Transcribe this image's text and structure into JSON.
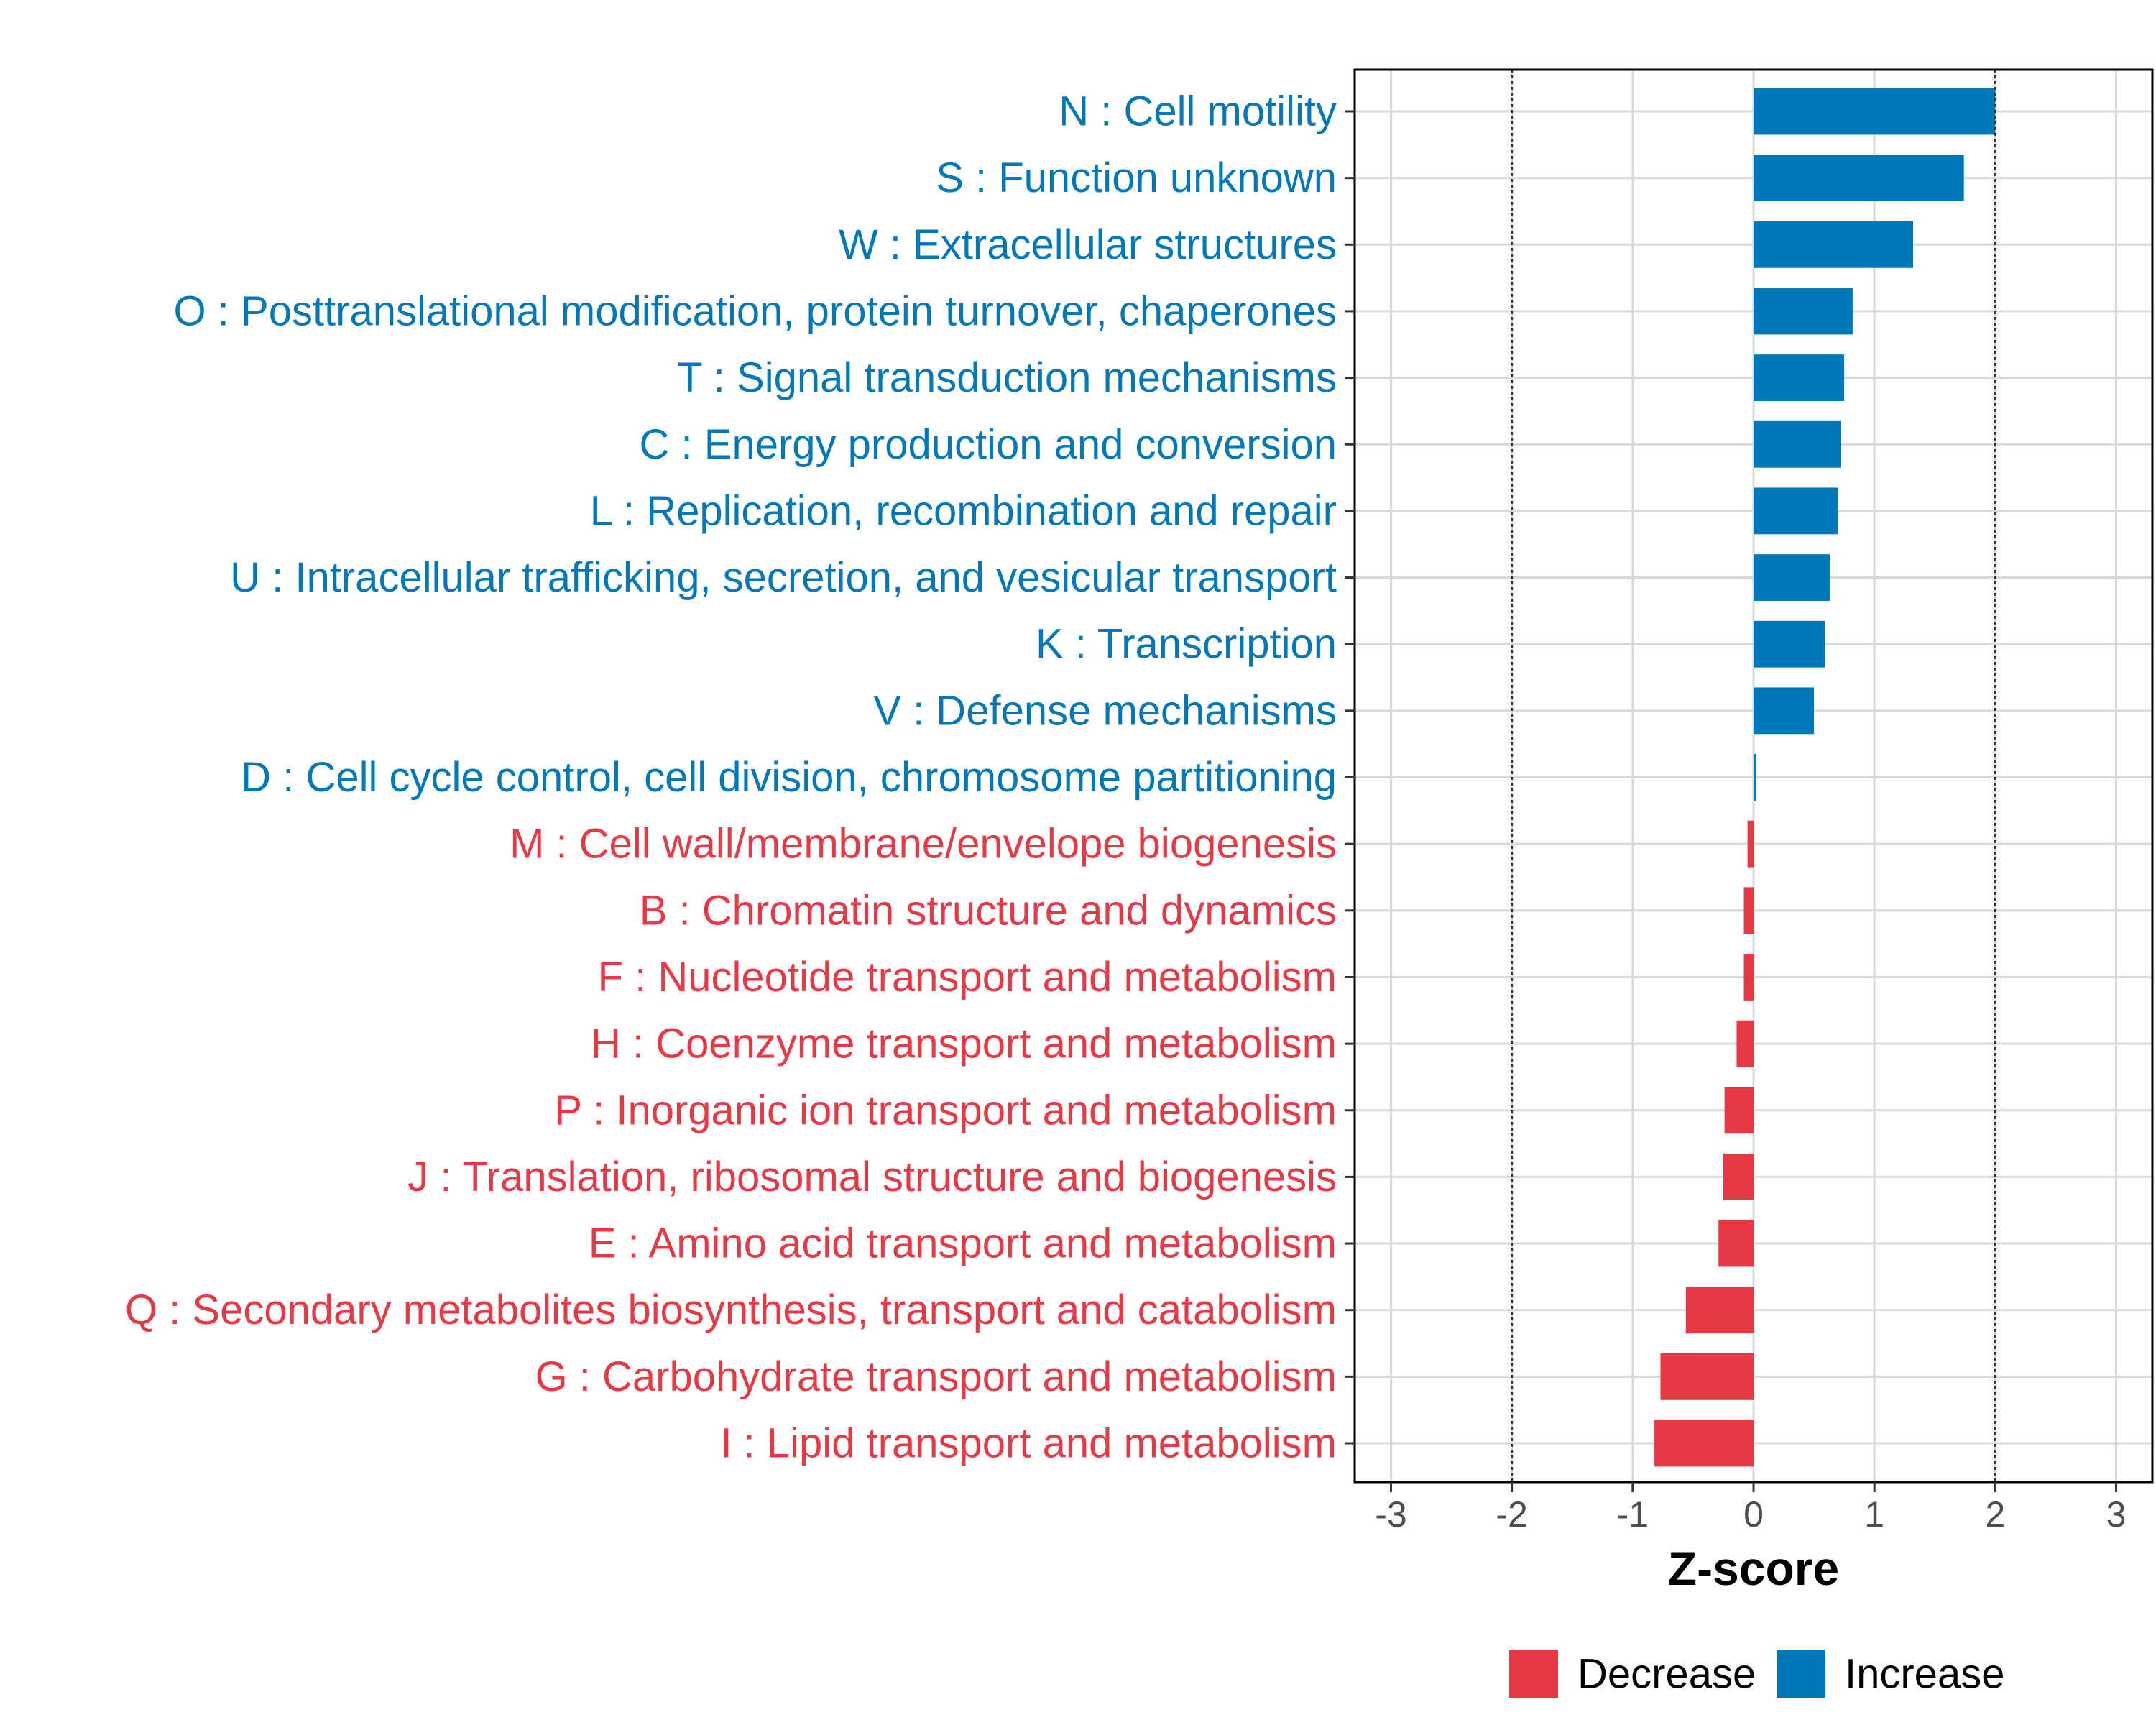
{
  "chart_data": {
    "type": "bar",
    "orientation": "horizontal",
    "xlabel": "Z-score",
    "ylabel": "",
    "xlim": [
      -3.3,
      3.3
    ],
    "xticks": [
      -3,
      -2,
      -1,
      0,
      1,
      2,
      3
    ],
    "xtick_labels": [
      "-3",
      "-2",
      "-1",
      "0",
      "1",
      "2",
      "3"
    ],
    "threshold_lines": [
      -2,
      2
    ],
    "grid": true,
    "legend_position": "bottom",
    "colors": {
      "Decrease": "#E63946",
      "Increase": "#0077B6"
    },
    "legend": [
      {
        "name": "Decrease",
        "color": "#E63946"
      },
      {
        "name": "Increase",
        "color": "#0077B6"
      }
    ],
    "categories": [
      "N : Cell motility",
      "S : Function unknown",
      "W : Extracellular structures",
      "O : Posttranslational modification, protein turnover, chaperones",
      "T : Signal transduction mechanisms",
      "C : Energy production and conversion",
      "L : Replication, recombination and repair",
      "U : Intracellular trafficking, secretion, and vesicular transport",
      "K : Transcription",
      "V : Defense mechanisms",
      "D : Cell cycle control, cell division, chromosome partitioning",
      "M : Cell wall/membrane/envelope biogenesis",
      "B : Chromatin structure and dynamics",
      "F : Nucleotide transport and metabolism",
      "H : Coenzyme transport and metabolism",
      "P : Inorganic ion transport and metabolism",
      "J : Translation, ribosomal structure and biogenesis",
      "E : Amino acid transport and metabolism",
      "Q : Secondary metabolites biosynthesis, transport and catabolism",
      "G : Carbohydrate transport and metabolism",
      "I : Lipid transport and metabolism"
    ],
    "values": [
      2.0,
      1.74,
      1.32,
      0.82,
      0.75,
      0.72,
      0.7,
      0.63,
      0.59,
      0.5,
      0.02,
      -0.05,
      -0.08,
      -0.08,
      -0.14,
      -0.24,
      -0.25,
      -0.29,
      -0.56,
      -0.77,
      -0.82
    ],
    "groups": [
      "Increase",
      "Increase",
      "Increase",
      "Increase",
      "Increase",
      "Increase",
      "Increase",
      "Increase",
      "Increase",
      "Increase",
      "Increase",
      "Decrease",
      "Decrease",
      "Decrease",
      "Decrease",
      "Decrease",
      "Decrease",
      "Decrease",
      "Decrease",
      "Decrease",
      "Decrease"
    ]
  }
}
